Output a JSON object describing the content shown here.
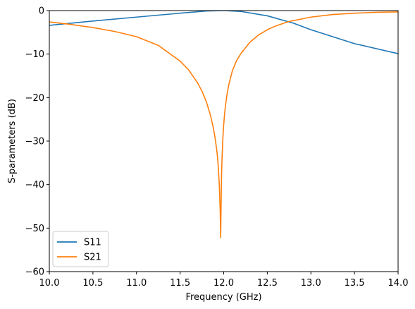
{
  "chart_data": {
    "type": "line",
    "title": "",
    "xlabel": "Frequency (GHz)",
    "ylabel": "S-parameters (dB)",
    "xlim": [
      10.0,
      14.0
    ],
    "ylim": [
      -60,
      0
    ],
    "xticks": [
      10.0,
      10.5,
      11.0,
      11.5,
      12.0,
      12.5,
      13.0,
      13.5,
      14.0
    ],
    "xtick_labels": [
      "10.0",
      "10.5",
      "11.0",
      "11.5",
      "12.0",
      "12.5",
      "13.0",
      "13.5",
      "14.0"
    ],
    "yticks": [
      0,
      -10,
      -20,
      -30,
      -40,
      -50,
      -60
    ],
    "ytick_labels": [
      "0",
      "−10",
      "−20",
      "−30",
      "−40",
      "−50",
      "−60"
    ],
    "grid": false,
    "legend_position": "lower-left",
    "series": [
      {
        "name": "S11",
        "color": "#1f77b4",
        "x": [
          10.0,
          10.5,
          11.0,
          11.5,
          11.8,
          12.0,
          12.2,
          12.5,
          12.8,
          13.0,
          13.5,
          14.0
        ],
        "y": [
          -3.4,
          -2.4,
          -1.5,
          -0.6,
          -0.1,
          0.0,
          -0.2,
          -1.2,
          -2.9,
          -4.4,
          -7.6,
          -9.9
        ]
      },
      {
        "name": "S21",
        "color": "#ff7f0e",
        "x": [
          10.0,
          10.25,
          10.5,
          10.75,
          11.0,
          11.25,
          11.5,
          11.6,
          11.7,
          11.75,
          11.8,
          11.85,
          11.88,
          11.9,
          11.92,
          11.93,
          11.94,
          11.95,
          11.96,
          11.965,
          11.97,
          11.975,
          11.98,
          11.99,
          12.0,
          12.01,
          12.02,
          12.04,
          12.06,
          12.1,
          12.15,
          12.2,
          12.3,
          12.4,
          12.5,
          12.6,
          12.75,
          13.0,
          13.25,
          13.5,
          13.75,
          14.0
        ],
        "y": [
          -2.6,
          -3.2,
          -3.9,
          -4.8,
          -6.0,
          -8.0,
          -11.6,
          -13.7,
          -16.6,
          -18.5,
          -20.9,
          -24.2,
          -26.9,
          -29.1,
          -32.0,
          -33.9,
          -36.6,
          -40.2,
          -46.2,
          -52.2,
          -45.0,
          -38.0,
          -34.5,
          -29.5,
          -26.2,
          -23.8,
          -21.9,
          -19.0,
          -16.9,
          -13.8,
          -11.4,
          -9.8,
          -7.3,
          -5.6,
          -4.4,
          -3.5,
          -2.5,
          -1.5,
          -0.9,
          -0.6,
          -0.4,
          -0.3
        ]
      }
    ]
  }
}
